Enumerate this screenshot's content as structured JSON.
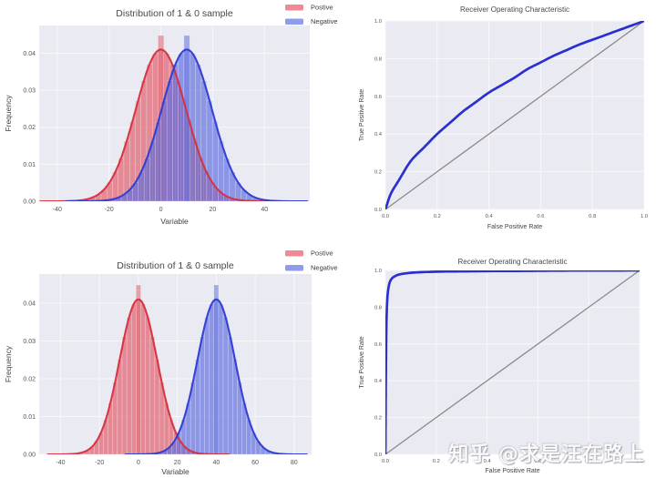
{
  "figure": {
    "background": "#ffffff"
  },
  "theme": {
    "axes_background": "#eaeaf2",
    "grid_color": "#f7f7fa",
    "tick_color": "#555555",
    "label_color": "#444444",
    "title_color": "#484848",
    "legend_text_color": "#3b3b3b",
    "diagonal_color": "#8a8a8a",
    "roc_line_color": "#2a30d0"
  },
  "watermark": {
    "text": "知乎 @求是汪在路上"
  },
  "chart_data": [
    {
      "id": "dist-overlapping",
      "type": "dist",
      "title": "Distribution of 1 & 0 sample",
      "xlabel": "Variable",
      "ylabel": "Frequency",
      "xlim": [
        -47,
        57.5
      ],
      "ylim": [
        0,
        0.0475
      ],
      "xticks": [
        -40,
        -20,
        0,
        20,
        40
      ],
      "xtick_labels": [
        "-40",
        "-20",
        "0",
        "20",
        "40"
      ],
      "yticks": [
        0,
        0.01,
        0.02,
        0.03,
        0.04
      ],
      "ytick_labels": [
        "0.00",
        "0.01",
        "0.02",
        "0.03",
        "0.04"
      ],
      "bin_width": 2.2,
      "series": [
        {
          "name": "Postive",
          "mean": 0,
          "std": 9.7,
          "peak": 0.041,
          "peak_bar": 0.0448,
          "line": "#d62f3e",
          "fill": "#e05260"
        },
        {
          "name": "Negative",
          "mean": 10,
          "std": 9.7,
          "peak": 0.041,
          "peak_bar": 0.0448,
          "line": "#2d3bd4",
          "fill": "#5565dd"
        }
      ],
      "legend": [
        {
          "label": "Postive",
          "swatch": "#ee8a93"
        },
        {
          "label": "Negative",
          "swatch": "#8f9ce9"
        }
      ]
    },
    {
      "id": "roc-moderate",
      "type": "roc",
      "title": "Receiver Operating Characteristic",
      "xlabel": "False Positive Rate",
      "ylabel": "True Positive Rate",
      "xlim": [
        0,
        1
      ],
      "ylim": [
        0,
        1
      ],
      "xticks": [
        0,
        0.2,
        0.4,
        0.6,
        0.8,
        1.0
      ],
      "xtick_labels": [
        "0.0",
        "0.2",
        "0.4",
        "0.6",
        "0.8",
        "1.0"
      ],
      "yticks": [
        0,
        0.2,
        0.4,
        0.6,
        0.8,
        1.0
      ],
      "ytick_labels": [
        "0.0",
        "0.2",
        "0.4",
        "0.6",
        "0.8",
        "1.0"
      ],
      "diagonal": true,
      "curve": {
        "fpr": [
          0,
          0.02,
          0.05,
          0.1,
          0.15,
          0.2,
          0.25,
          0.3,
          0.35,
          0.4,
          0.45,
          0.5,
          0.55,
          0.6,
          0.65,
          0.7,
          0.75,
          0.8,
          0.85,
          0.9,
          0.95,
          1.0
        ],
        "tpr": [
          0,
          0.08,
          0.15,
          0.26,
          0.33,
          0.4,
          0.46,
          0.52,
          0.57,
          0.62,
          0.66,
          0.7,
          0.745,
          0.78,
          0.815,
          0.845,
          0.875,
          0.9,
          0.925,
          0.95,
          0.975,
          1.0
        ]
      }
    },
    {
      "id": "dist-separated",
      "type": "dist",
      "title": "Distribution of 1 & 0 sample",
      "xlabel": "Variable",
      "ylabel": "Frequency",
      "xlim": [
        -51,
        89
      ],
      "ylim": [
        0,
        0.0477
      ],
      "xticks": [
        -40,
        -20,
        0,
        20,
        40,
        60,
        80
      ],
      "xtick_labels": [
        "-40",
        "-20",
        "0",
        "20",
        "40",
        "60",
        "80"
      ],
      "yticks": [
        0,
        0.01,
        0.02,
        0.03,
        0.04
      ],
      "ytick_labels": [
        "0.00",
        "0.01",
        "0.02",
        "0.03",
        "0.04"
      ],
      "bin_width": 2.4,
      "series": [
        {
          "name": "Postive",
          "mean": 0,
          "std": 9.7,
          "peak": 0.041,
          "peak_bar": 0.0448,
          "line": "#d62f3e",
          "fill": "#e05260"
        },
        {
          "name": "Negative",
          "mean": 40,
          "std": 9.7,
          "peak": 0.041,
          "peak_bar": 0.0448,
          "line": "#2d3bd4",
          "fill": "#5565dd"
        }
      ],
      "legend": [
        {
          "label": "Postive",
          "swatch": "#ee8a93"
        },
        {
          "label": "Negative",
          "swatch": "#8f9ce9"
        }
      ]
    },
    {
      "id": "roc-near-perfect",
      "type": "roc",
      "title": "Receiver Operating Characteristic",
      "xlabel": "False Positive Rate",
      "ylabel": "True Positive Rate",
      "xlim": [
        0,
        1
      ],
      "ylim": [
        0,
        1
      ],
      "xticks": [
        0,
        0.2,
        0.4,
        0.6,
        0.8,
        1.0
      ],
      "xtick_labels": [
        "0.0",
        "0.2",
        "0.4",
        "0.6",
        "0.8",
        "1.0"
      ],
      "yticks": [
        0,
        0.2,
        0.4,
        0.6,
        0.8,
        1.0
      ],
      "ytick_labels": [
        "0.0",
        "0.2",
        "0.4",
        "0.6",
        "0.8",
        "1.0"
      ],
      "diagonal": true,
      "curve": {
        "fpr": [
          0,
          0.001,
          0.002,
          0.003,
          0.004,
          0.006,
          0.008,
          0.01,
          0.015,
          0.02,
          0.03,
          0.05,
          0.08,
          0.12,
          0.2,
          0.3,
          0.5,
          0.75,
          1.0
        ],
        "tpr": [
          0,
          0.25,
          0.45,
          0.6,
          0.7,
          0.8,
          0.855,
          0.885,
          0.925,
          0.945,
          0.962,
          0.976,
          0.984,
          0.989,
          0.993,
          0.995,
          0.997,
          0.999,
          1.0
        ]
      }
    }
  ]
}
